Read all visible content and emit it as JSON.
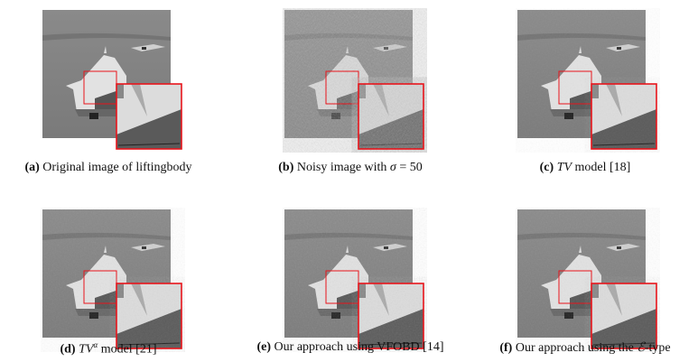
{
  "figure": {
    "panels": [
      {
        "label": "(a)",
        "caption": "Original image of liftingbody",
        "noise": 0
      },
      {
        "label": "(b)",
        "caption_pre": "Noisy image with ",
        "symbol": "σ",
        "caption_post": " = 50",
        "noise": 1
      },
      {
        "label": "(c)",
        "symbol": "TV",
        "caption_post": " model [18]",
        "noise": 0.15
      },
      {
        "label": "(d)",
        "symbol": "TV",
        "superscript": "α",
        "caption_post": " model [21]",
        "noise": 0.2
      },
      {
        "label": "(e)",
        "caption": "Our approach using VFOBD [14]",
        "noise": 0.25
      },
      {
        "label": "(f)",
        "caption_pre": "Our approach using the ",
        "symbol": "ℰ",
        "caption_post": "-type",
        "noise": 0.2
      }
    ],
    "zoom_box_color": "#e8141b"
  }
}
